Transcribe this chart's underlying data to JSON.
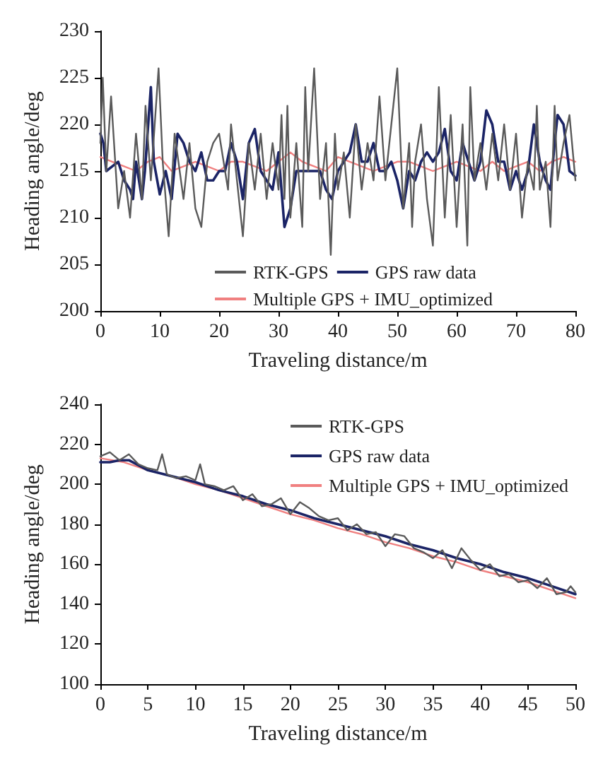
{
  "chart_data": [
    {
      "type": "line",
      "xlabel": "Traveling distance/m",
      "ylabel": "Heading angle/deg",
      "xlim": [
        0,
        80
      ],
      "ylim": [
        200,
        230
      ],
      "xticks": [
        0,
        10,
        20,
        30,
        40,
        50,
        60,
        70,
        80
      ],
      "yticks": [
        200,
        205,
        210,
        215,
        220,
        225,
        230
      ],
      "legend": "bottom",
      "grid": false,
      "series": [
        {
          "name": "RTK-GPS",
          "color": "#5a5a5a",
          "x": [
            0,
            0.4,
            1,
            1.8,
            3,
            4,
            5,
            6,
            7,
            7.6,
            8.5,
            9.8,
            10.5,
            11.5,
            12.5,
            14,
            15,
            16,
            17,
            18,
            19,
            20,
            21.5,
            22,
            23,
            24,
            25,
            26,
            27,
            28,
            29,
            30,
            30.5,
            31,
            31.5,
            32,
            33,
            34,
            34.5,
            35,
            36,
            37,
            38,
            38.8,
            39.5,
            40,
            41,
            42,
            43,
            44,
            45,
            46,
            47,
            48,
            49,
            50,
            51,
            52,
            52.5,
            53,
            54,
            55,
            56,
            57,
            58,
            59,
            60,
            61,
            61.8,
            62.3,
            63,
            64,
            65,
            66,
            67,
            68,
            69,
            70,
            71,
            72,
            73,
            73.5,
            74,
            75,
            75.8,
            76.5,
            77,
            78,
            79,
            80
          ],
          "values": [
            218,
            225,
            215,
            223,
            211,
            215,
            210,
            219,
            212,
            222,
            214,
            226,
            216,
            208,
            219,
            212,
            218,
            211,
            209,
            216,
            218,
            219,
            213,
            220,
            214,
            208,
            218,
            213,
            219,
            212,
            218,
            213,
            221,
            212,
            222,
            210,
            218,
            209,
            224,
            215,
            226,
            212,
            218,
            206,
            219,
            213,
            217,
            210,
            220,
            213,
            218,
            214,
            223,
            214,
            220,
            226,
            211,
            218,
            209,
            216,
            220,
            212,
            207,
            224,
            210,
            221,
            209,
            220,
            207,
            224,
            214,
            218,
            213,
            219,
            214,
            220,
            213,
            219,
            210,
            216,
            213,
            222,
            213,
            216,
            209,
            222,
            214,
            218,
            221,
            214
          ]
        },
        {
          "name": "GPS raw data",
          "color": "#1b2466",
          "x": [
            0,
            0.5,
            1,
            2,
            3,
            4,
            5,
            5.5,
            6,
            7,
            7.5,
            8.5,
            9,
            10,
            11,
            12,
            13,
            14,
            15,
            16,
            17,
            18,
            19,
            20,
            21,
            22,
            23,
            24,
            25,
            26,
            27,
            28,
            29,
            30,
            31,
            32,
            33,
            34,
            35,
            36,
            37,
            38,
            39,
            40,
            41,
            42,
            43,
            44,
            45,
            46,
            47,
            48,
            49,
            50,
            51,
            52,
            53,
            54,
            55,
            56,
            57,
            58,
            59,
            60,
            61,
            62,
            63,
            64,
            65,
            66,
            67,
            68,
            69,
            70,
            71,
            72,
            73,
            74,
            75,
            75.8,
            76.5,
            77,
            78,
            79,
            80
          ],
          "values": [
            219,
            218,
            215,
            215.5,
            216,
            214,
            213,
            212,
            216,
            212,
            215,
            224,
            216,
            212.5,
            215,
            212,
            219,
            218,
            216,
            215,
            217,
            214,
            214,
            215,
            215,
            218,
            216,
            212,
            218,
            219.5,
            215,
            214,
            213,
            217,
            209,
            211,
            215,
            215,
            215,
            215,
            215,
            213,
            212,
            215,
            216,
            217,
            220,
            216,
            216,
            218,
            215,
            215,
            216,
            214,
            211,
            215,
            214,
            216,
            217,
            216,
            217,
            219.5,
            215,
            214,
            218,
            216,
            214,
            216,
            221.5,
            220,
            216,
            216,
            213,
            215,
            213,
            215,
            220,
            216,
            214,
            213,
            218,
            221,
            220,
            215,
            214.5
          ]
        },
        {
          "name": "Multiple GPS + IMU_optimized",
          "color": "#f08080",
          "x": [
            0,
            2,
            4,
            6,
            8,
            10,
            12,
            14,
            16,
            18,
            20,
            22,
            24,
            26,
            28,
            30,
            32,
            34,
            36,
            38,
            40,
            42,
            44,
            46,
            48,
            50,
            52,
            54,
            56,
            58,
            60,
            62,
            64,
            66,
            68,
            70,
            72,
            74,
            76,
            78,
            80
          ],
          "values": [
            216.5,
            216,
            215.5,
            215,
            216,
            216.5,
            215,
            215.5,
            216,
            215.5,
            215,
            216,
            216,
            215.5,
            215,
            216,
            217,
            216,
            215.5,
            215,
            216.5,
            216,
            215.5,
            215,
            215.5,
            216,
            216,
            215.5,
            215,
            215.5,
            216,
            215.5,
            215,
            216,
            215,
            215.5,
            216,
            215,
            216,
            216.5,
            216
          ]
        }
      ]
    },
    {
      "type": "line",
      "xlabel": "Traveling distance/m",
      "ylabel": "Heading angle/deg",
      "xlim": [
        0,
        50
      ],
      "ylim": [
        100,
        240
      ],
      "xticks": [
        0,
        5,
        10,
        15,
        20,
        25,
        30,
        35,
        40,
        45,
        50
      ],
      "yticks": [
        100,
        120,
        140,
        160,
        180,
        200,
        220,
        240
      ],
      "legend": "top right",
      "grid": false,
      "series": [
        {
          "name": "RTK-GPS",
          "color": "#5a5a5a",
          "x": [
            0,
            1,
            2,
            3,
            4,
            5,
            6,
            6.5,
            7,
            8,
            9,
            10,
            10.5,
            11,
            12,
            13,
            14,
            15,
            16,
            17,
            18,
            19,
            20,
            21,
            22,
            23,
            24,
            25,
            26,
            27,
            28,
            29,
            30,
            31,
            32,
            33,
            34,
            35,
            36,
            37,
            38,
            39,
            40,
            41,
            42,
            43,
            44,
            45,
            46,
            47,
            48,
            49,
            49.5,
            50
          ],
          "values": [
            214,
            216,
            212,
            215,
            210,
            208,
            207,
            215,
            205,
            203,
            204,
            202,
            210,
            200,
            199,
            197,
            199,
            192,
            195,
            189,
            190,
            193,
            185,
            191,
            188,
            184,
            182,
            183,
            177,
            180,
            175,
            176,
            169,
            175,
            174,
            168,
            166,
            163,
            167,
            158,
            168,
            162,
            157,
            160,
            154,
            155,
            151,
            152,
            148,
            153,
            145,
            146,
            149,
            146
          ]
        },
        {
          "name": "GPS raw data",
          "color": "#1b2466",
          "x": [
            0,
            1,
            2,
            3,
            5,
            7.5,
            10,
            12.5,
            15,
            17.5,
            20,
            22.5,
            25,
            27.5,
            30,
            32.5,
            35,
            37.5,
            40,
            42.5,
            45,
            47.5,
            50
          ],
          "values": [
            211,
            211,
            212,
            212,
            207,
            204,
            201,
            197,
            194,
            190,
            187,
            183,
            180,
            177,
            174,
            170,
            167,
            163,
            160,
            156,
            153,
            149,
            145
          ]
        },
        {
          "name": "Multiple GPS + IMU_optimized",
          "color": "#f08080",
          "x": [
            0,
            2.5,
            5,
            7.5,
            10,
            12.5,
            15,
            17.5,
            20,
            22.5,
            25,
            27.5,
            30,
            32.5,
            35,
            37.5,
            40,
            42.5,
            45,
            47.5,
            50
          ],
          "values": [
            213,
            211,
            207,
            204,
            200,
            197,
            193,
            189,
            185,
            182,
            178,
            175,
            171,
            168,
            164,
            161,
            157,
            154,
            151,
            147,
            143
          ]
        }
      ]
    }
  ]
}
